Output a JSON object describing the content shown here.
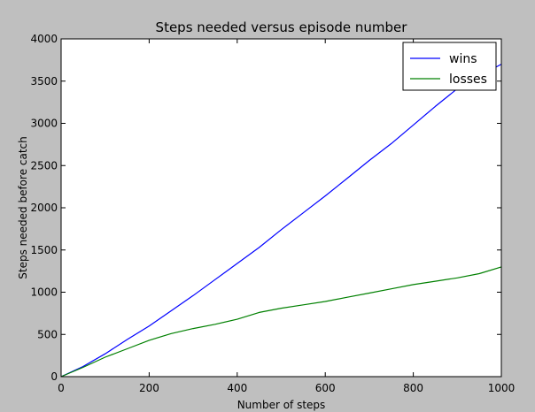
{
  "chart_data": {
    "type": "line",
    "title": "Steps needed versus episode number",
    "xlabel": "Number of steps",
    "ylabel": "Steps needed before catch",
    "xlim": [
      0,
      1000
    ],
    "ylim": [
      0,
      4000
    ],
    "xticks": [
      0,
      200,
      400,
      600,
      800,
      1000
    ],
    "yticks": [
      0,
      500,
      1000,
      1500,
      2000,
      2500,
      3000,
      3500,
      4000
    ],
    "grid": false,
    "legend_position": "top-right",
    "series": [
      {
        "name": "wins",
        "color": "#0000ff",
        "x": [
          0,
          50,
          100,
          150,
          200,
          250,
          300,
          350,
          400,
          450,
          500,
          550,
          600,
          650,
          700,
          750,
          800,
          850,
          900,
          950,
          1000
        ],
        "y": [
          0,
          120,
          270,
          440,
          600,
          780,
          960,
          1150,
          1340,
          1530,
          1740,
          1940,
          2140,
          2350,
          2560,
          2760,
          2980,
          3200,
          3410,
          3560,
          3700
        ]
      },
      {
        "name": "losses",
        "color": "#008000",
        "x": [
          0,
          50,
          100,
          150,
          200,
          250,
          300,
          350,
          400,
          450,
          500,
          550,
          600,
          650,
          700,
          750,
          800,
          850,
          900,
          950,
          1000
        ],
        "y": [
          0,
          110,
          230,
          330,
          430,
          510,
          570,
          620,
          680,
          760,
          810,
          850,
          890,
          940,
          990,
          1040,
          1090,
          1130,
          1170,
          1220,
          1300
        ]
      }
    ]
  }
}
